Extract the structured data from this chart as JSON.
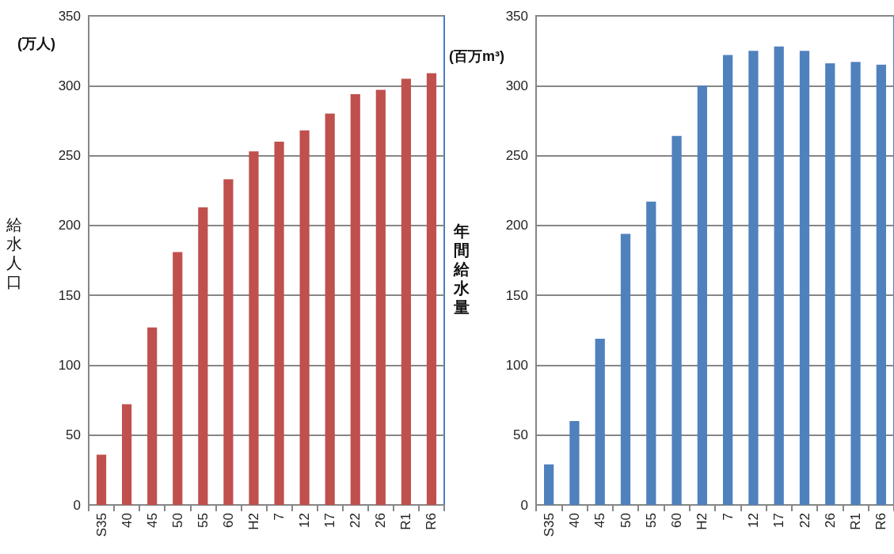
{
  "chart_data": [
    {
      "type": "bar",
      "ylabel": "給水人口",
      "annotations": [
        "(万人)"
      ],
      "categories": [
        "S35",
        "40",
        "45",
        "50",
        "55",
        "60",
        "H2",
        "7",
        "12",
        "17",
        "22",
        "26",
        "R1",
        "R6"
      ],
      "series": [
        {
          "color": "#c0504d",
          "values": [
            36,
            72,
            127,
            181,
            213,
            233,
            253,
            260,
            268,
            280,
            294,
            297,
            305,
            309
          ]
        }
      ],
      "ylim": [
        0,
        350
      ],
      "yticks": [
        0,
        50,
        100,
        150,
        200,
        250,
        300,
        350
      ],
      "grid": "y"
    },
    {
      "type": "bar",
      "ylabel": "年間給水量",
      "annotations": [
        "(百万m³)"
      ],
      "categories": [
        "S35",
        "40",
        "45",
        "50",
        "55",
        "60",
        "H2",
        "7",
        "12",
        "17",
        "22",
        "26",
        "R1",
        "R6"
      ],
      "series": [
        {
          "color": "#4f81bd",
          "values": [
            29,
            60,
            119,
            194,
            217,
            264,
            300,
            322,
            325,
            328,
            325,
            316,
            317,
            315
          ]
        }
      ],
      "ylim": [
        0,
        350
      ],
      "yticks": [
        0,
        50,
        100,
        150,
        200,
        250,
        300,
        350
      ],
      "grid": "y"
    }
  ]
}
